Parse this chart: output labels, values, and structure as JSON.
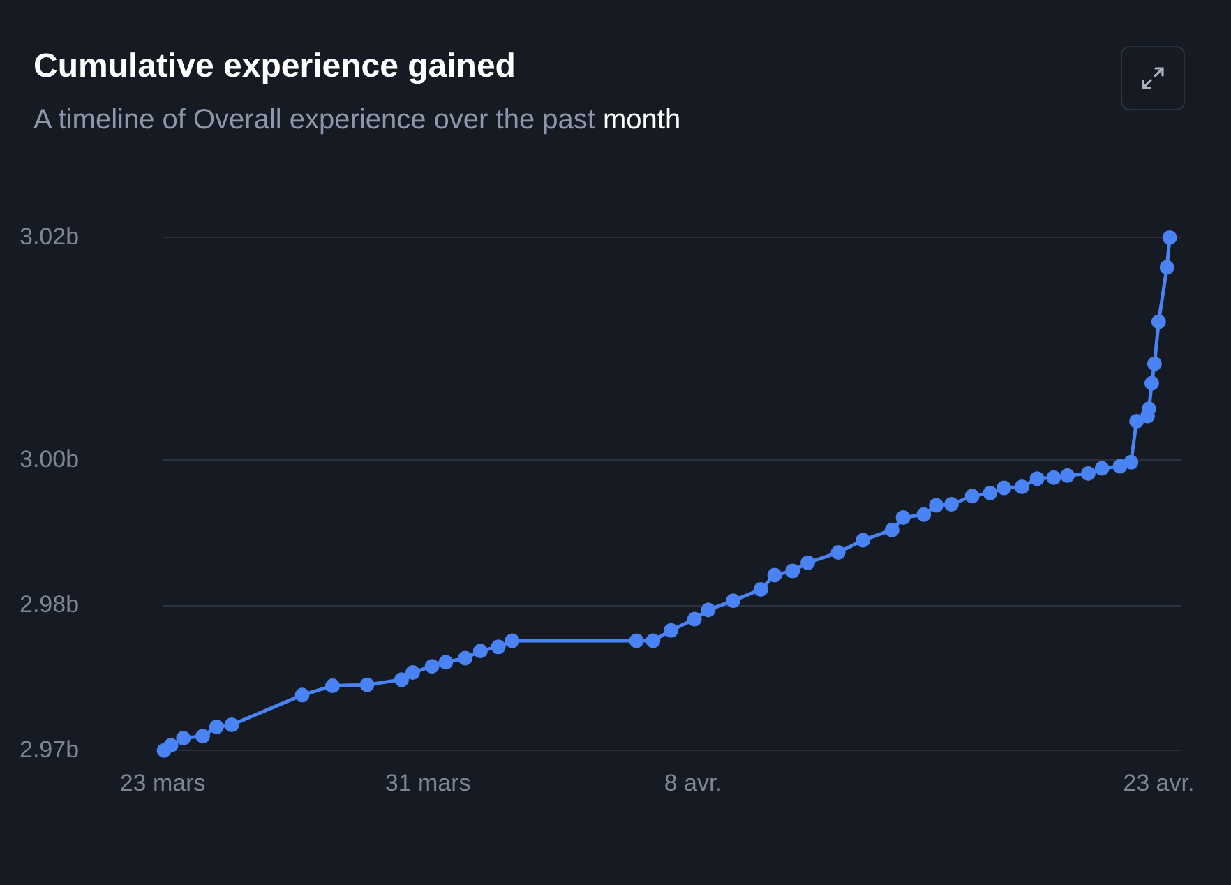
{
  "chart_data": {
    "type": "line",
    "title": "Cumulative experience gained",
    "subtitle": "A timeline of Overall experience over the past month",
    "x": [
      "--03-23T01:00",
      "--03-23T06:00",
      "--03-23T15:00",
      "--03-24T05:00",
      "--03-24T15:00",
      "--03-25T02:00",
      "--03-27T05:00",
      "--03-28T03:00",
      "--03-29T04:00",
      "--03-30T05:00",
      "--03-30T13:00",
      "--03-31T03:00",
      "--03-31T13:00",
      "--04-01T03:00",
      "--04-01T14:00",
      "--04-02T03:00",
      "--04-02T13:00",
      "--04-06T07:00",
      "--04-06T19:00",
      "--04-07T08:00",
      "--04-08T01:00",
      "--04-08T11:00",
      "--04-09T05:00",
      "--04-10T01:00",
      "--04-10T11:00",
      "--04-11T00:00",
      "--04-11T11:00",
      "--04-12T09:00",
      "--04-13T03:00",
      "--04-14T00:00",
      "--04-14T08:00",
      "--04-14T23:00",
      "--04-15T08:00",
      "--04-15T19:00",
      "--04-16T10:00",
      "--04-16T23:00",
      "--04-17T09:00",
      "--04-17T22:00",
      "--04-18T09:00",
      "--04-18T21:00",
      "--04-19T07:00",
      "--04-19T22:00",
      "--04-20T08:00",
      "--04-20T21:00",
      "--04-21T05:00",
      "--04-21T09:00",
      "--04-21T17:00",
      "--04-21T18:00",
      "--04-21T20:00",
      "--04-21T22:00",
      "--04-22T01:00",
      "--04-22T07:00",
      "--04-22T09:00"
    ],
    "series": [
      {
        "color": "#4a84f4",
        "values": [
          2.97,
          2.9705,
          2.9712,
          2.9714,
          2.9723,
          2.9725,
          2.9754,
          2.9763,
          2.9764,
          2.9769,
          2.9776,
          2.9782,
          2.9786,
          2.979,
          2.9797,
          2.9801,
          2.9807,
          2.9807,
          2.9807,
          2.9817,
          2.9828,
          2.9837,
          2.9846,
          2.9857,
          2.9871,
          2.9875,
          2.9883,
          2.9893,
          2.9905,
          2.9915,
          2.9927,
          2.993,
          2.9939,
          2.994,
          2.9948,
          2.9951,
          2.9956,
          2.9957,
          2.9965,
          2.9966,
          2.9968,
          2.997,
          2.9975,
          2.9977,
          2.9981,
          3.0021,
          3.0026,
          3.0033,
          3.0058,
          3.0077,
          3.0118,
          3.0171,
          3.02
        ]
      }
    ],
    "xlim": [
      "--03-23T00:00",
      "--04-22T17:00"
    ],
    "xticks": [
      {
        "value": "--03-23T00:00",
        "label": "23 mars"
      },
      {
        "value": "--03-31T00:00",
        "label": "31 mars"
      },
      {
        "value": "--04-08T00:00",
        "label": "8 avr."
      },
      {
        "value": "--04-22T01:00",
        "label": "23 avr."
      }
    ],
    "ylim": [
      2.97,
      3.02
    ],
    "yticks": [
      {
        "value": 2.97,
        "label": "2.97b"
      },
      {
        "value": 2.9841,
        "label": "2.98b"
      },
      {
        "value": 2.9983,
        "label": "3.00b"
      },
      {
        "value": 3.02,
        "label": "3.02b"
      }
    ],
    "grid": "y",
    "legend": false,
    "marker": "circle",
    "line_style": "solid"
  }
}
